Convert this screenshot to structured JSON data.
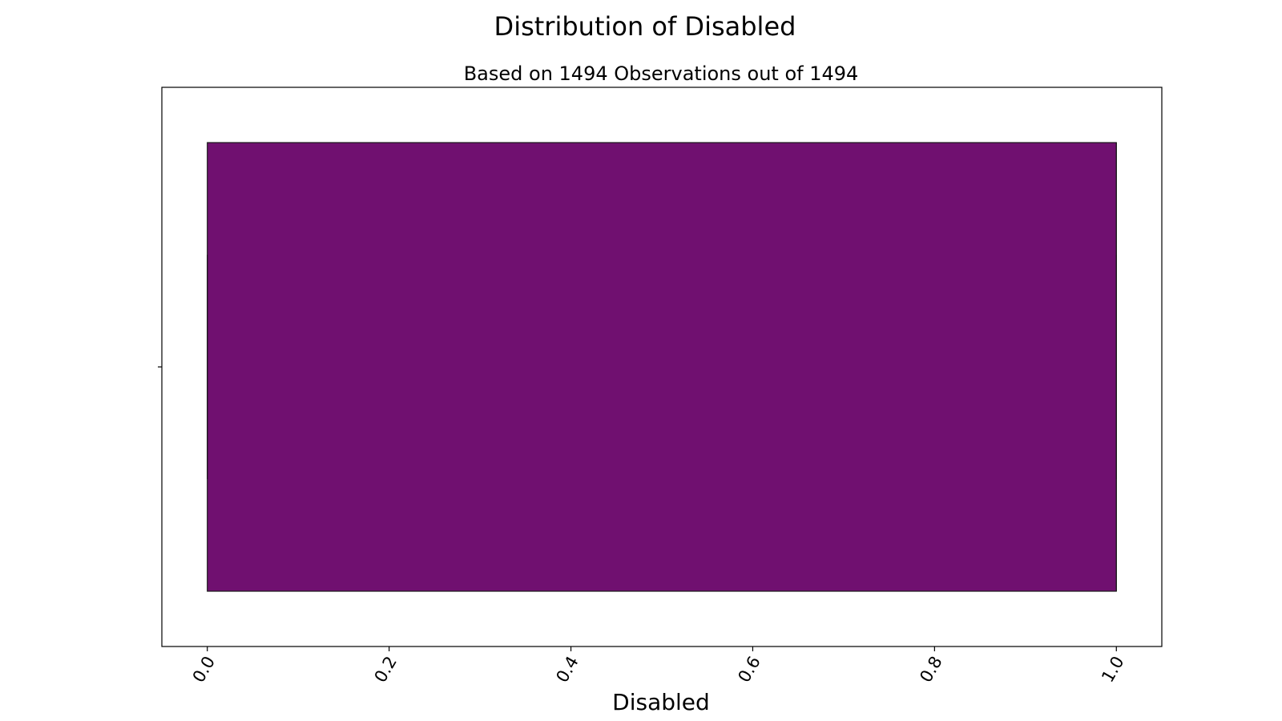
{
  "chart_data": {
    "type": "boxplot",
    "orientation": "horizontal",
    "title": "Distribution of Disabled",
    "subtitle": "Based on 1494 Observations out of 1494",
    "xlabel": "Disabled",
    "ylabel": "",
    "xlim": [
      -0.05,
      1.05
    ],
    "xticks": [
      0.0,
      0.2,
      0.4,
      0.6,
      0.8,
      1.0
    ],
    "xtick_labels": [
      "0.0",
      "0.2",
      "0.4",
      "0.6",
      "0.8",
      "1.0"
    ],
    "xtick_rotation_deg": 60,
    "grid": false,
    "legend": "none",
    "box": {
      "whisker_low": 0.0,
      "q1": 0.0,
      "median": 1.0,
      "q3": 1.0,
      "whisker_high": 1.0,
      "color": "#701070",
      "edge_color": "#1a1a1a"
    }
  }
}
